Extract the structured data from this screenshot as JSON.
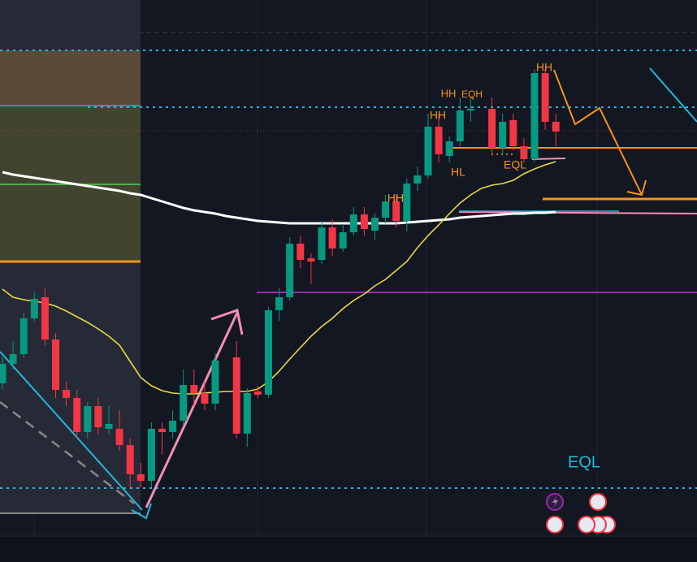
{
  "chart_data": {
    "type": "candlestick",
    "ylim": [
      0,
      692
    ],
    "up_color": "#089981",
    "down_color": "#f23645",
    "open": [
      220,
      244,
      256,
      300,
      326,
      274,
      212,
      202,
      160,
      192,
      164,
      164,
      144,
      108,
      100,
      164,
      160,
      174,
      218,
      208,
      195,
      null,
      252,
      158,
      210,
      206,
      310,
      326,
      392,
      374,
      372,
      412,
      386,
      406,
      428,
      408,
      424,
      444,
      420,
      466,
      476,
      536,
      500,
      518,
      556,
      null,
      558,
      510,
      544,
      512,
      496,
      602,
      542
    ],
    "high": [
      252,
      272,
      307,
      332,
      337,
      282,
      222,
      212,
      197,
      202,
      192,
      187,
      152,
      122,
      172,
      172,
      187,
      237,
      237,
      222,
      257,
      null,
      272,
      214,
      217,
      314,
      337,
      400,
      402,
      380,
      420,
      422,
      416,
      437,
      437,
      430,
      452,
      452,
      472,
      487,
      552,
      552,
      524,
      572,
      572,
      null,
      572,
      552,
      552,
      522,
      607,
      607,
      552
    ],
    "low": [
      212,
      237,
      252,
      297,
      267,
      202,
      192,
      152,
      152,
      157,
      157,
      137,
      92,
      92,
      92,
      132,
      152,
      167,
      192,
      187,
      187,
      null,
      152,
      142,
      202,
      202,
      297,
      322,
      362,
      342,
      367,
      377,
      382,
      402,
      402,
      397,
      417,
      412,
      407,
      457,
      472,
      492,
      492,
      512,
      542,
      null,
      502,
      502,
      507,
      492,
      492,
      532,
      512
    ],
    "close": [
      244,
      256,
      300,
      324,
      274,
      212,
      202,
      160,
      192,
      166,
      170,
      144,
      108,
      100,
      164,
      160,
      174,
      218,
      208,
      195,
      248,
      null,
      158,
      208,
      206,
      310,
      326,
      392,
      372,
      370,
      412,
      386,
      406,
      428,
      410,
      424,
      444,
      420,
      466,
      476,
      536,
      502,
      518,
      556,
      558,
      null,
      510,
      542,
      512,
      496,
      602,
      542,
      530
    ],
    "overlays": [
      {
        "color": "#ffffff",
        "values": [
          480,
          477,
          475,
          473,
          471,
          469,
          467,
          465,
          463,
          461,
          459,
          457,
          454,
          452,
          448,
          444,
          440,
          436,
          433,
          431,
          429,
          426,
          424,
          422,
          420,
          419,
          418,
          417,
          417,
          417,
          417,
          417,
          417,
          417,
          417,
          417,
          417,
          417,
          418,
          419,
          420,
          421,
          422,
          424,
          425,
          426,
          427,
          428,
          429,
          429,
          430,
          430,
          431
        ]
      },
      {
        "color": "#e8d84a",
        "values": [
          336,
          326,
          323,
          321,
          319,
          315,
          309,
          302,
          295,
          287,
          278,
          267,
          247,
          227,
          217,
          211,
          208,
          207,
          207,
          208,
          209,
          210,
          210,
          210,
          213,
          222,
          235,
          250,
          264,
          278,
          290,
          300,
          312,
          322,
          330,
          340,
          348,
          359,
          370,
          387,
          402,
          415,
          429,
          442,
          452,
          460,
          464,
          466,
          470,
          478,
          484,
          489,
          493
        ]
      }
    ],
    "annotations": [
      {
        "text": "HH",
        "color": "#f7931a"
      },
      {
        "text": "HH",
        "color": "#f7931a"
      },
      {
        "text": "HH",
        "color": "#f7931a"
      },
      {
        "text": "EQH",
        "color": "#f7931a"
      },
      {
        "text": "HL",
        "color": "#f7931a"
      },
      {
        "text": "EQL",
        "color": "#f7931a"
      },
      {
        "text": "HH",
        "color": "#f7931a"
      },
      {
        "text": "EQL",
        "color": "#22b8d8"
      }
    ]
  }
}
